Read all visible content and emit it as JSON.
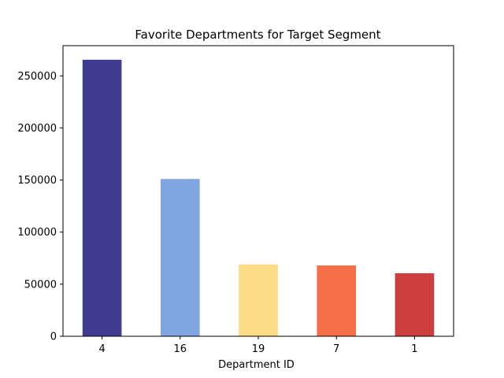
{
  "chart_data": {
    "type": "bar",
    "title": "Favorite Departments for Target Segment",
    "xlabel": "Department ID",
    "ylabel": "",
    "categories": [
      "4",
      "16",
      "19",
      "7",
      "1"
    ],
    "values": [
      265500,
      151000,
      69000,
      68000,
      60500
    ],
    "colors": [
      "#3f3b90",
      "#7fa6e0",
      "#fcdc86",
      "#f57048",
      "#cf3e3e"
    ],
    "ylim": [
      0,
      279000
    ],
    "yticks": [
      0,
      50000,
      100000,
      150000,
      200000,
      250000
    ],
    "ytick_labels": [
      "0",
      "50000",
      "100000",
      "150000",
      "200000",
      "250000"
    ],
    "grid": false,
    "legend": false
  }
}
